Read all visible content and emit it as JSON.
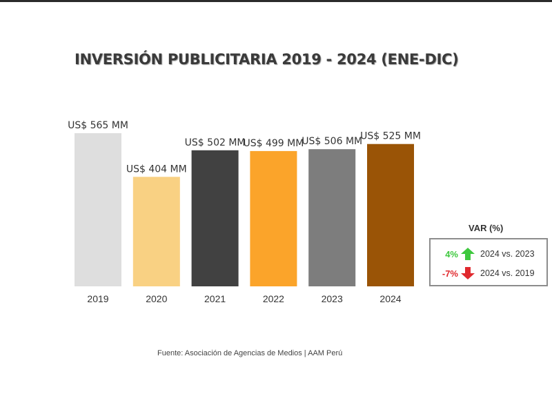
{
  "title": "INVERSIÓN PUBLICITARIA 2019 - 2024 (ENE-DIC)",
  "chart_data": {
    "type": "bar",
    "title": "INVERSIÓN PUBLICITARIA 2019 - 2024 (ENE-DIC)",
    "categories": [
      "2019",
      "2020",
      "2021",
      "2022",
      "2023",
      "2024"
    ],
    "values": [
      565,
      404,
      502,
      499,
      506,
      525
    ],
    "data_labels": [
      "US$ 565 MM",
      "US$ 404 MM",
      "US$ 502 MM",
      "US$ 499 MM",
      "US$ 506 MM",
      "US$ 525 MM"
    ],
    "colors": [
      "#dedede",
      "#f9d183",
      "#414141",
      "#fba42a",
      "#7d7d7d",
      "#9a5406"
    ],
    "xlabel": "",
    "ylabel": "",
    "ylim": [
      0,
      565
    ],
    "grid": false,
    "legend": "none"
  },
  "variation": {
    "title": "VAR (%)",
    "rows": [
      {
        "value": "4%",
        "direction": "up",
        "color": "#3ec83e",
        "label": "2024 vs. 2023"
      },
      {
        "value": "-7%",
        "direction": "down",
        "color": "#e0292e",
        "label": "2024 vs. 2019"
      }
    ]
  },
  "source": "Fuente: Asociación de Agencias de Medios | AAM Perú"
}
